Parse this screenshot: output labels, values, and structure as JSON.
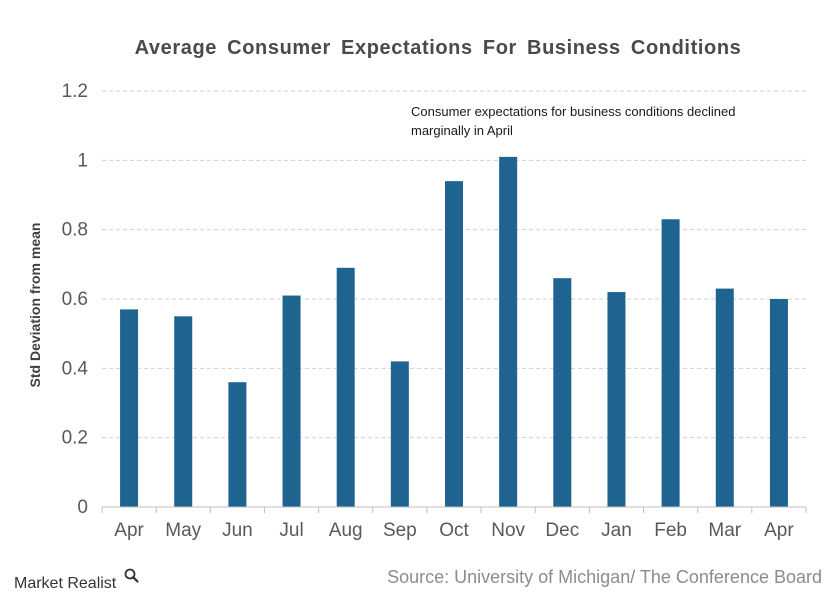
{
  "chart_data": {
    "type": "bar",
    "title": "Average Consumer Expectations For Business Conditions",
    "ylabel": "Std Deviation from mean",
    "xlabel": "",
    "categories": [
      "Apr",
      "May",
      "Jun",
      "Jul",
      "Aug",
      "Sep",
      "Oct",
      "Nov",
      "Dec",
      "Jan",
      "Feb",
      "Mar",
      "Apr"
    ],
    "values": [
      0.57,
      0.55,
      0.36,
      0.61,
      0.69,
      0.42,
      0.94,
      1.01,
      0.66,
      0.62,
      0.83,
      0.63,
      0.6
    ],
    "ylim": [
      0,
      1.2
    ],
    "yticks": [
      "0",
      "0.2",
      "0.4",
      "0.6",
      "0.8",
      "1",
      "1.2"
    ],
    "grid": true,
    "bar_color": "#1f6391",
    "annotation": {
      "line1": "Consumer expectations for business conditions declined",
      "line2": "marginally in April"
    }
  },
  "footer": {
    "brand": "Market Realist",
    "source": "Source: University of Michigan/ The Conference Board"
  },
  "icons": {
    "brand_icon": "magnifier-icon"
  }
}
